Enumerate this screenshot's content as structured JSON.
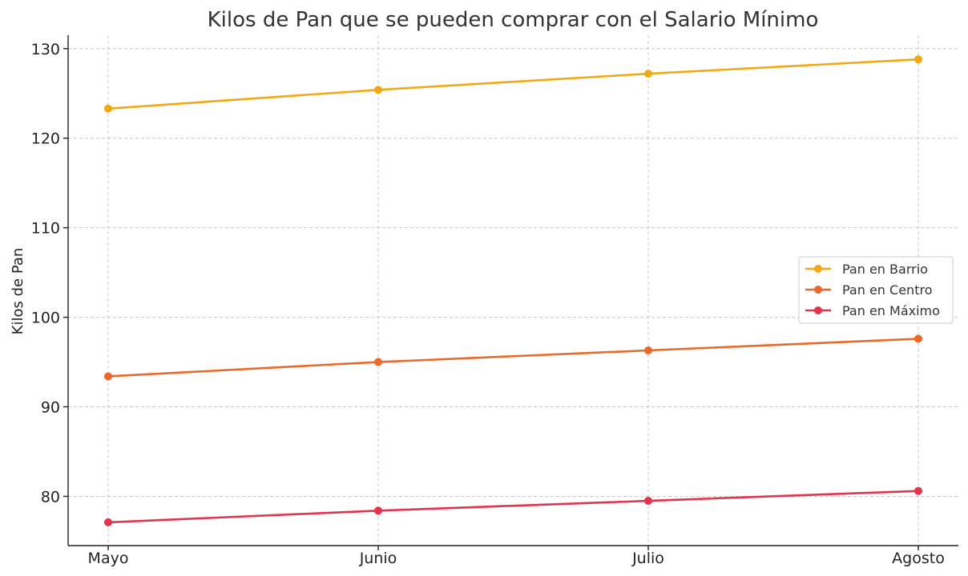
{
  "chart_data": {
    "type": "line",
    "title": "Kilos de Pan que se pueden comprar con el Salario Mínimo",
    "xlabel": "",
    "ylabel": "Kilos de Pan",
    "categories": [
      "Mayo",
      "Junio",
      "Julio",
      "Agosto"
    ],
    "series": [
      {
        "name": "Pan en Barrio",
        "color": "#f0a914",
        "values": [
          123.3,
          125.4,
          127.2,
          128.8
        ]
      },
      {
        "name": "Pan en Centro",
        "color": "#e8692a",
        "values": [
          93.4,
          95.0,
          96.3,
          97.6
        ]
      },
      {
        "name": "Pan en Máximo",
        "color": "#e0344f",
        "values": [
          77.1,
          78.4,
          79.5,
          80.6
        ]
      }
    ],
    "ylim": [
      74.5,
      131.5
    ],
    "yticks": [
      80,
      90,
      100,
      110,
      120,
      130
    ],
    "grid": true,
    "legend_position": "center-right"
  }
}
